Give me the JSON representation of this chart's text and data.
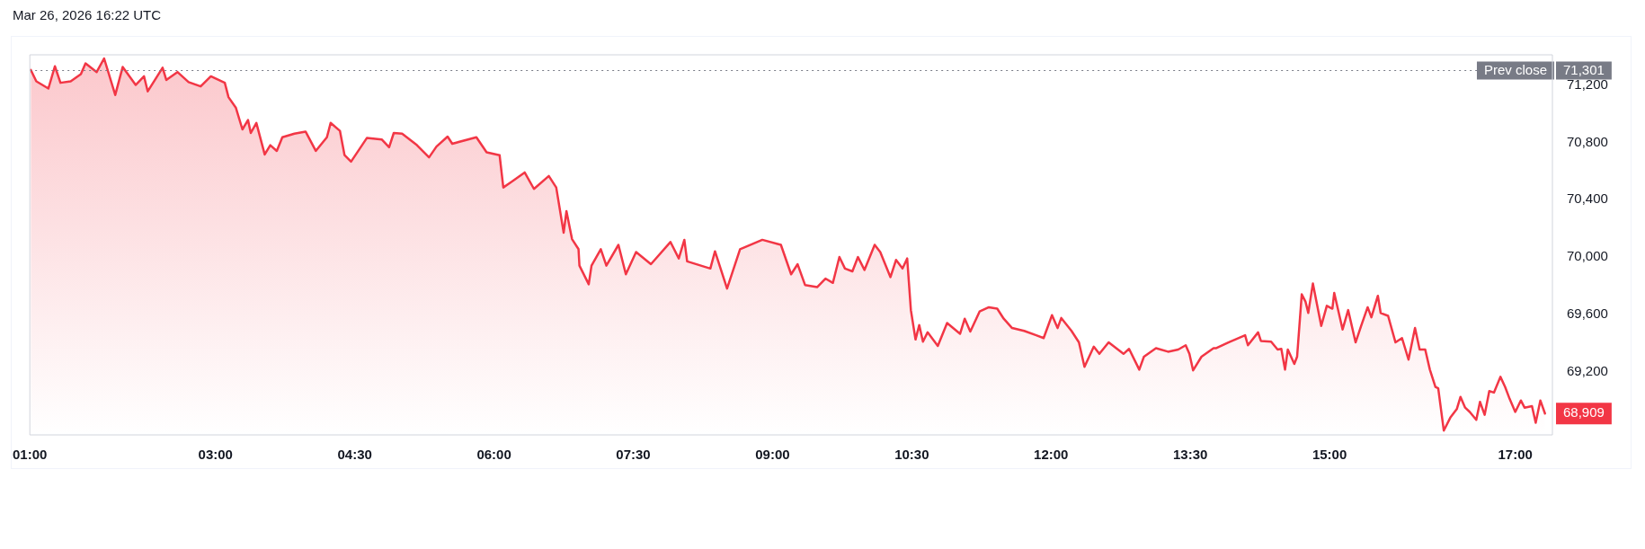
{
  "chart_data": {
    "type": "area",
    "annotations": [
      "Mar 26, 2026 16:22 UTC",
      "71,301",
      {
        "text": "68,909",
        "x": 17.32,
        "y": 68909
      }
    ],
    "x": [
      1.01,
      1.07,
      1.2,
      1.27,
      1.33,
      1.44,
      1.55,
      1.6,
      1.72,
      1.8,
      1.92,
      2,
      2.14,
      2.23,
      2.27,
      2.43,
      2.47,
      2.59,
      2.71,
      2.84,
      2.95,
      3.1,
      3.14,
      3.22,
      3.29,
      3.35,
      3.38,
      3.44,
      3.53,
      3.59,
      3.66,
      3.72,
      3.85,
      3.97,
      4.08,
      4.2,
      4.24,
      4.34,
      4.39,
      4.46,
      4.63,
      4.79,
      4.87,
      4.92,
      5.01,
      5.17,
      5.3,
      5.38,
      5.5,
      5.55,
      5.81,
      5.92,
      6.06,
      6.1,
      6.19,
      6.33,
      6.43,
      6.59,
      6.67,
      6.75,
      6.78,
      6.84,
      6.91,
      6.92,
      7.02,
      7.05,
      7.15,
      7.21,
      7.34,
      7.42,
      7.53,
      7.69,
      7.9,
      7.99,
      8.05,
      8.08,
      8.33,
      8.38,
      8.51,
      8.65,
      8.89,
      9.09,
      9.2,
      9.27,
      9.35,
      9.48,
      9.57,
      9.65,
      9.72,
      9.78,
      9.86,
      9.92,
      9.99,
      10.1,
      10.16,
      10.27,
      10.33,
      10.4,
      10.45,
      10.49,
      10.54,
      10.58,
      10.62,
      10.67,
      10.78,
      10.88,
      11.02,
      11.07,
      11.13,
      11.23,
      11.33,
      11.42,
      11.49,
      11.58,
      11.71,
      11.84,
      11.92,
      12.01,
      12.07,
      12.11,
      12.22,
      12.3,
      12.36,
      12.46,
      12.52,
      12.62,
      12.78,
      12.84,
      12.95,
      13,
      13.13,
      13.26,
      13.37,
      13.45,
      13.49,
      13.53,
      13.62,
      13.75,
      13.78,
      13.91,
      14.09,
      14.12,
      14.23,
      14.26,
      14.37,
      14.44,
      14.48,
      14.52,
      14.55,
      14.62,
      14.65,
      14.7,
      14.74,
      14.77,
      14.82,
      14.91,
      14.97,
      15.03,
      15.05,
      15.14,
      15.2,
      15.28,
      15.34,
      15.41,
      15.45,
      15.52,
      15.55,
      15.63,
      15.71,
      15.78,
      15.85,
      15.92,
      15.97,
      16.03,
      16.08,
      16.14,
      16.17,
      16.23,
      16.3,
      16.37,
      16.41,
      16.46,
      16.51,
      16.58,
      16.62,
      16.67,
      16.72,
      16.77,
      16.84,
      16.89,
      16.94,
      17,
      17.06,
      17.1,
      17.18,
      17.22,
      17.27,
      17.32
    ],
    "series": [
      {
        "color": "#f23645",
        "values": [
          71305,
          71225,
          71175,
          71330,
          71215,
          71225,
          71275,
          71350,
          71290,
          71385,
          71130,
          71325,
          71200,
          71260,
          71155,
          71320,
          71235,
          71290,
          71220,
          71190,
          71260,
          71215,
          71115,
          71040,
          70890,
          70955,
          70865,
          70935,
          70715,
          70780,
          70740,
          70835,
          70860,
          70875,
          70740,
          70835,
          70935,
          70880,
          70710,
          70665,
          70830,
          70820,
          70765,
          70865,
          70860,
          70780,
          70695,
          70770,
          70840,
          70790,
          70835,
          70730,
          70710,
          70485,
          70525,
          70590,
          70475,
          70565,
          70485,
          70170,
          70320,
          70125,
          70055,
          69940,
          69810,
          69940,
          70055,
          69940,
          70085,
          69880,
          70035,
          69950,
          70105,
          69990,
          70120,
          69970,
          69920,
          70040,
          69780,
          70055,
          70120,
          70085,
          69880,
          69950,
          69805,
          69790,
          69850,
          69820,
          70000,
          69920,
          69900,
          70000,
          69910,
          70085,
          70035,
          69860,
          69980,
          69920,
          69990,
          69630,
          69425,
          69525,
          69410,
          69475,
          69380,
          69540,
          69465,
          69570,
          69480,
          69620,
          69650,
          69640,
          69570,
          69505,
          69485,
          69455,
          69435,
          69595,
          69505,
          69575,
          69485,
          69405,
          69235,
          69375,
          69325,
          69405,
          69325,
          69360,
          69215,
          69305,
          69365,
          69340,
          69355,
          69385,
          69325,
          69210,
          69305,
          69365,
          69365,
          69405,
          69455,
          69385,
          69475,
          69415,
          69410,
          69355,
          69360,
          69215,
          69355,
          69255,
          69305,
          69740,
          69690,
          69610,
          69815,
          69520,
          69660,
          69640,
          69750,
          69495,
          69630,
          69405,
          69520,
          69650,
          69580,
          69730,
          69610,
          69590,
          69405,
          69435,
          69285,
          69505,
          69355,
          69355,
          69215,
          69095,
          69085,
          68790,
          68880,
          68940,
          69025,
          68950,
          68920,
          68865,
          68990,
          68900,
          69065,
          69055,
          69165,
          69095,
          69010,
          68920,
          69000,
          68950,
          68960,
          68845,
          69000,
          68909
        ]
      }
    ],
    "xlim": [
      1,
      17.4
    ],
    "xticks": [
      {
        "value": 1,
        "label": "01:00"
      },
      {
        "value": 3,
        "label": "03:00"
      },
      {
        "value": 4.5,
        "label": "04:30"
      },
      {
        "value": 6,
        "label": "06:00"
      },
      {
        "value": 7.5,
        "label": "07:30"
      },
      {
        "value": 9,
        "label": "09:00"
      },
      {
        "value": 10.5,
        "label": "10:30"
      },
      {
        "value": 12,
        "label": "12:00"
      },
      {
        "value": 13.5,
        "label": "13:30"
      },
      {
        "value": 15,
        "label": "15:00"
      },
      {
        "value": 17,
        "label": "17:00"
      }
    ],
    "ylim": [
      68760,
      71410
    ],
    "yticks": [
      {
        "value": 69200,
        "label": "69,200"
      },
      {
        "value": 69600,
        "label": "69,600"
      },
      {
        "value": 70000,
        "label": "70,000"
      },
      {
        "value": 70400,
        "label": "70,400"
      },
      {
        "value": 70800,
        "label": "70,800"
      },
      {
        "value": 71200,
        "label": "71,200"
      }
    ],
    "ref_lines": [
      {
        "axis": "y",
        "value": 71301,
        "label": "Prev close",
        "color": "#787b86",
        "line_style": "dotted"
      }
    ],
    "marker": "none"
  }
}
